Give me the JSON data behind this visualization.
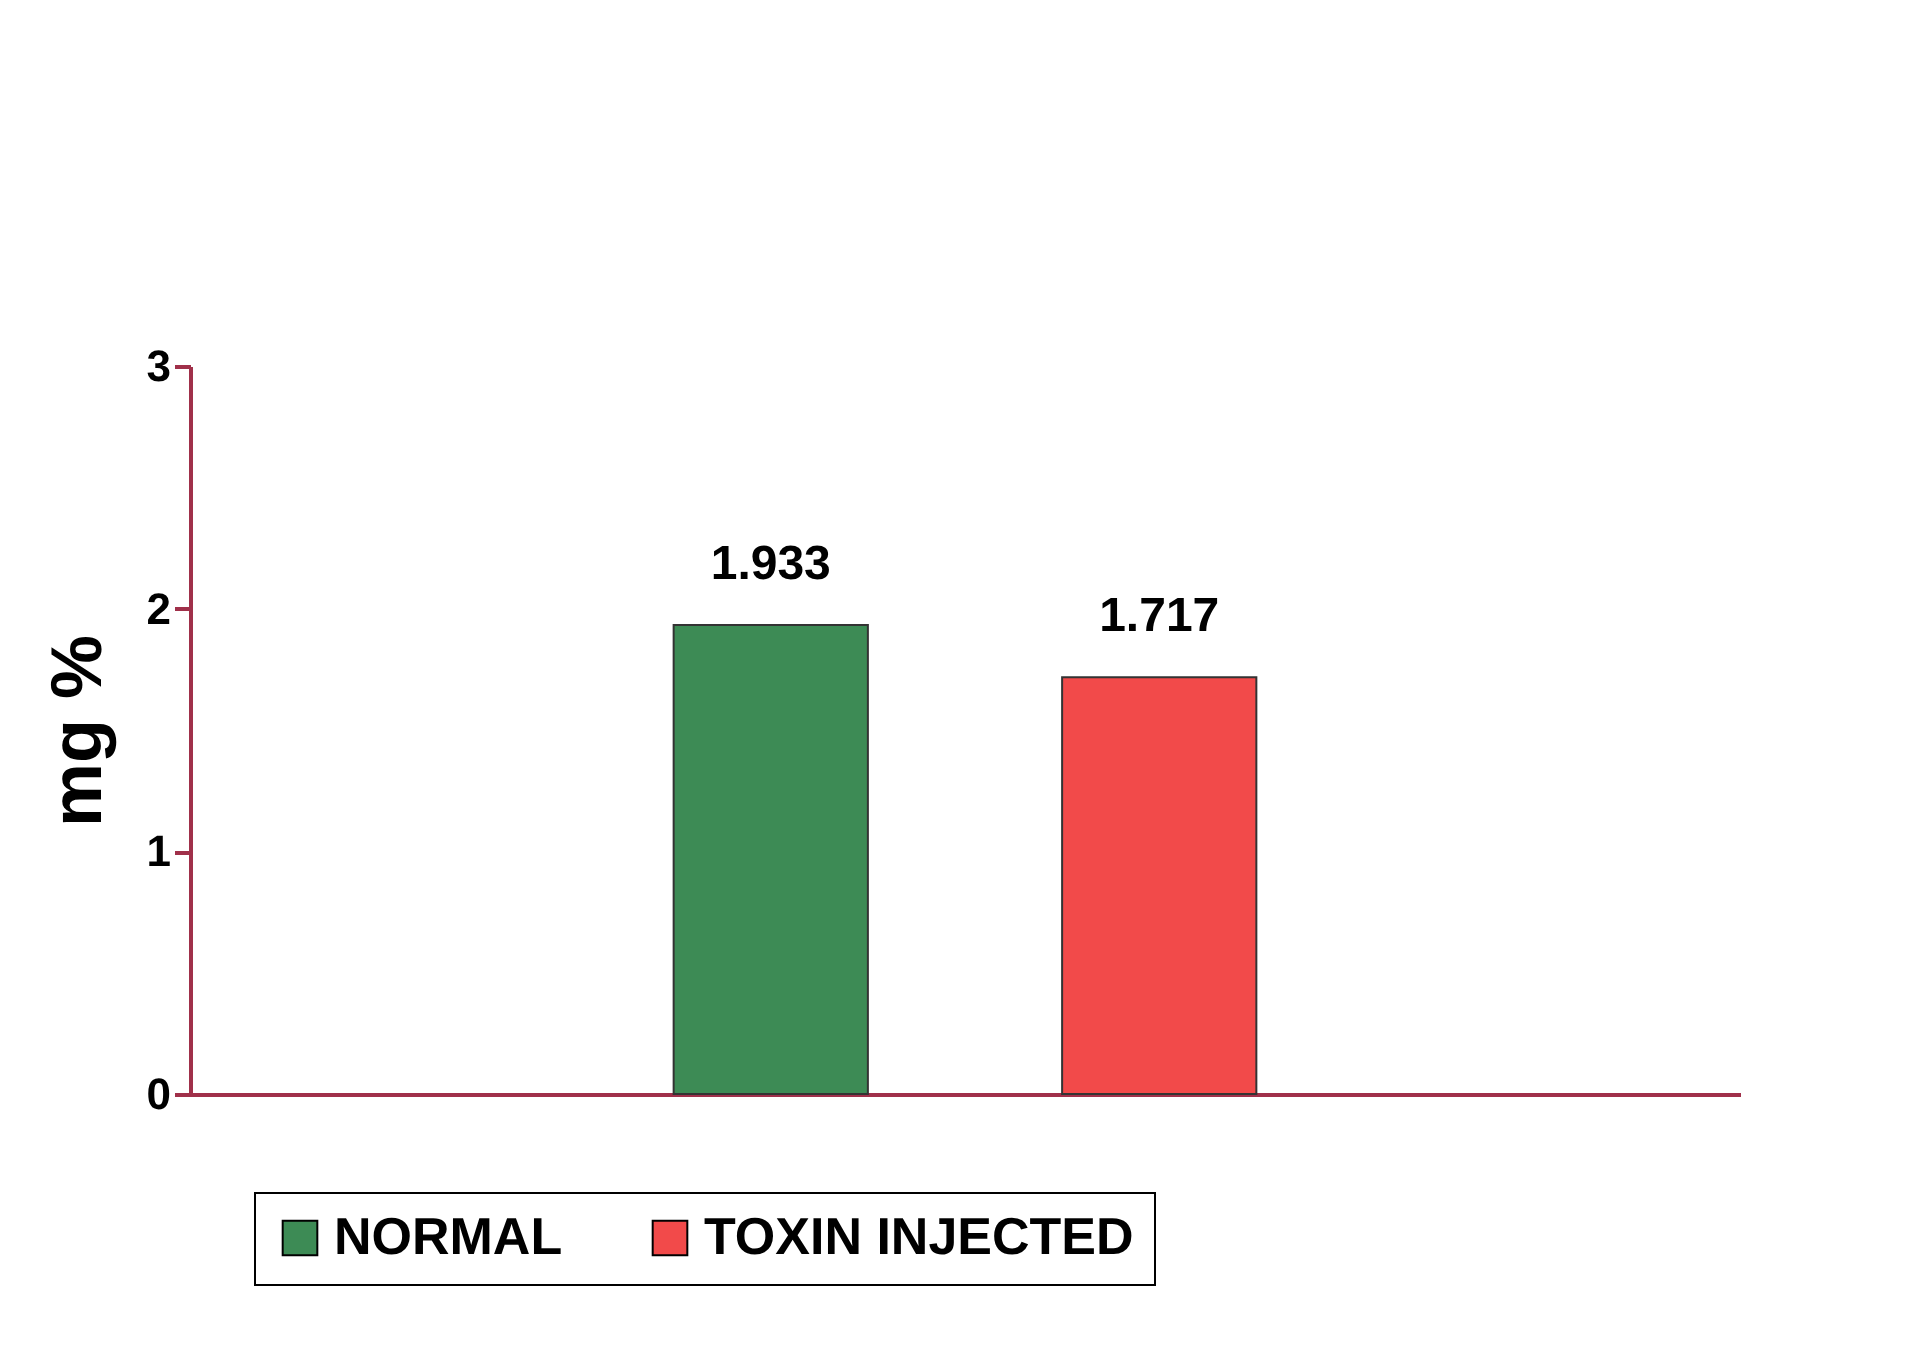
{
  "chart_data": {
    "type": "bar",
    "ylabel": "mg %",
    "categories": [
      null
    ],
    "series": [
      {
        "name": "NORMAL",
        "color": "#3d8b55",
        "values": [
          1.933
        ]
      },
      {
        "name": "TOXIN INJECTED",
        "color": "#f24a4a",
        "values": [
          1.717
        ]
      }
    ],
    "ylim": [
      0,
      3
    ],
    "yticks": [
      0,
      1,
      2,
      3
    ],
    "data_labels": true,
    "legend": "bottom",
    "grid": false
  }
}
